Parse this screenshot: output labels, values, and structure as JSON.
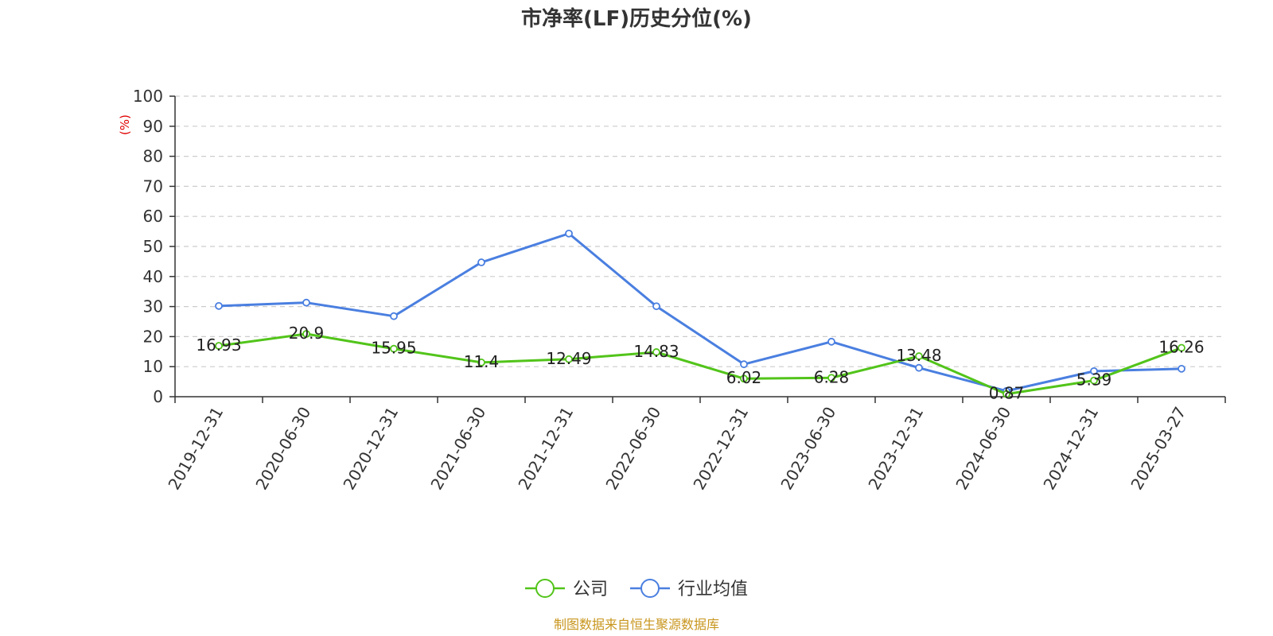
{
  "chart_data": {
    "type": "line",
    "title": "市净率(LF)历史分位(%)",
    "ylabel": "(%)",
    "ylim": [
      0,
      100
    ],
    "yticks": [
      0,
      10,
      20,
      30,
      40,
      50,
      60,
      70,
      80,
      90,
      100
    ],
    "grid": true,
    "categories": [
      "2019-12-31",
      "2020-06-30",
      "2020-12-31",
      "2021-06-30",
      "2021-12-31",
      "2022-06-30",
      "2022-12-31",
      "2023-06-30",
      "2023-12-31",
      "2024-06-30",
      "2024-12-31",
      "2025-03-27"
    ],
    "series": [
      {
        "name": "公司",
        "color": "#52c41a",
        "values": [
          16.93,
          20.9,
          15.95,
          11.4,
          12.49,
          14.83,
          6.02,
          6.28,
          13.48,
          0.87,
          5.39,
          16.26
        ],
        "labels": [
          "16.93",
          "20.9",
          "15.95",
          "11.4",
          "12.49",
          "14.83",
          "6.02",
          "6.28",
          "13.48",
          "0.87",
          "5.39",
          "16.26"
        ]
      },
      {
        "name": "行业均值",
        "color": "#4a7fe0",
        "values": [
          30.2,
          31.3,
          26.8,
          44.7,
          54.3,
          30.1,
          10.8,
          18.3,
          9.6,
          1.9,
          8.5,
          9.3
        ]
      }
    ],
    "legend_position": "bottom-center",
    "source": "制图数据来自恒生聚源数据库"
  }
}
